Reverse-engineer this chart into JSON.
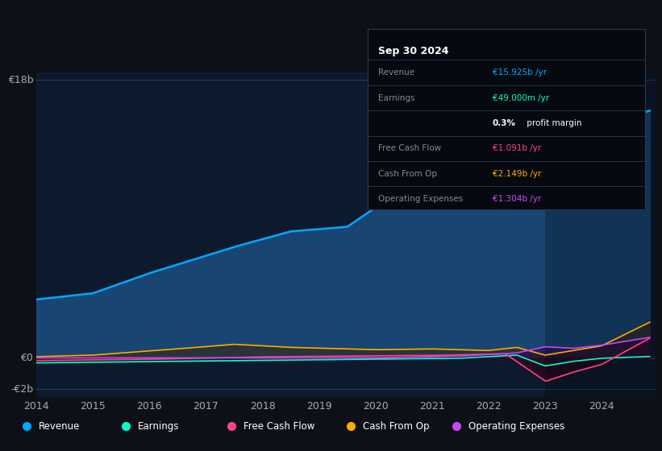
{
  "bg_color": "#0d1117",
  "chart_bg": "#0d1a2e",
  "grid_color": "#1e3a5f",
  "ylabel_18b": "€18b",
  "ylabel_0": "€0",
  "ylabel_neg2b": "-€2b",
  "x_ticks": [
    2014,
    2015,
    2016,
    2017,
    2018,
    2019,
    2020,
    2021,
    2022,
    2023,
    2024
  ],
  "legend_items": [
    {
      "label": "Revenue",
      "color": "#00aaff"
    },
    {
      "label": "Earnings",
      "color": "#00ffcc"
    },
    {
      "label": "Free Cash Flow",
      "color": "#ff4488"
    },
    {
      "label": "Cash From Op",
      "color": "#ffaa00"
    },
    {
      "label": "Operating Expenses",
      "color": "#cc44ff"
    }
  ],
  "info_box_title": "Sep 30 2024",
  "info_rows": [
    {
      "label": "Revenue",
      "value": "€15.925b /yr",
      "color": "#00aaff"
    },
    {
      "label": "Earnings",
      "value": "€49.000m /yr",
      "color": "#00ffcc"
    },
    {
      "label": "",
      "value": "0.3% profit margin",
      "color": "#ffffff"
    },
    {
      "label": "Free Cash Flow",
      "value": "€1.091b /yr",
      "color": "#ff4488"
    },
    {
      "label": "Cash From Op",
      "value": "€2.149b /yr",
      "color": "#ffaa00"
    },
    {
      "label": "Operating Expenses",
      "value": "€1.304b /yr",
      "color": "#cc44ff"
    }
  ],
  "ylim": [
    -2.5,
    18.5
  ],
  "xlim": [
    2014,
    2024.95
  ]
}
